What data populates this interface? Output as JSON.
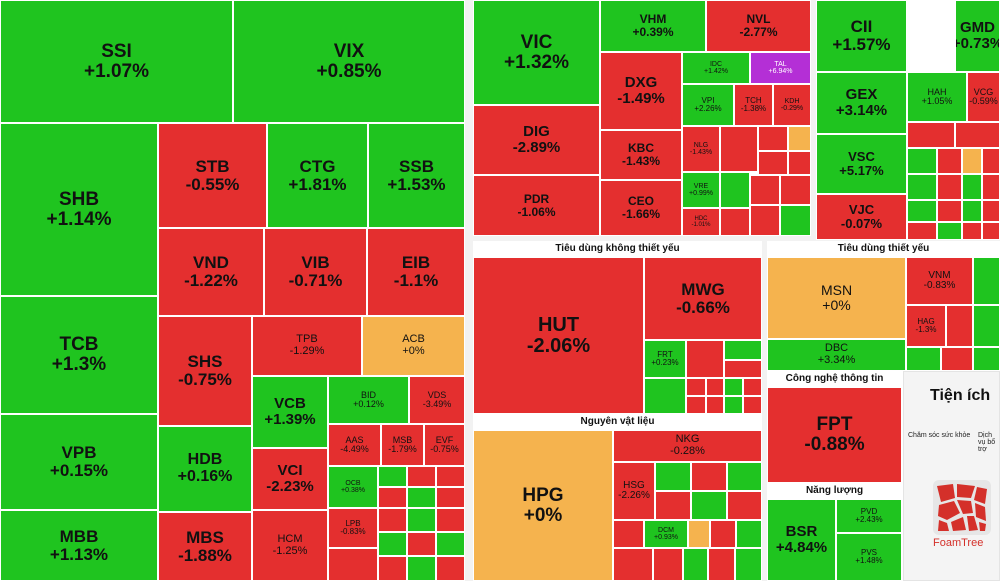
{
  "colors": {
    "up": "#1fc41f",
    "down": "#e42f2f",
    "flat": "#f5b34e",
    "ceiling": "#b42fd6",
    "separator": "#f2f2f2"
  },
  "sections": {
    "consumer_discretionary": "Tiêu dùng không thiết yếu",
    "consumer_staples": "Tiêu dùng thiết yếu",
    "materials": "Nguyên vật liệu",
    "technology": "Công nghệ thông tin",
    "energy": "Năng lượng"
  },
  "utilities": {
    "title": "Tiện ích",
    "items": [
      "Chăm sóc sức khỏe",
      "Dịch vụ bổ trợ"
    ]
  },
  "logo": {
    "text": "FoamTree"
  },
  "chart_data": {
    "type": "heatmap",
    "unit": "% price change",
    "tiles": [
      {
        "ticker": "SSI",
        "change": "+1.07%",
        "value": 1.07
      },
      {
        "ticker": "VIX",
        "change": "+0.85%",
        "value": 0.85
      },
      {
        "ticker": "SHB",
        "change": "+1.14%",
        "value": 1.14
      },
      {
        "ticker": "STB",
        "change": "-0.55%",
        "value": -0.55
      },
      {
        "ticker": "CTG",
        "change": "+1.81%",
        "value": 1.81
      },
      {
        "ticker": "SSB",
        "change": "+1.53%",
        "value": 1.53
      },
      {
        "ticker": "VND",
        "change": "-1.22%",
        "value": -1.22
      },
      {
        "ticker": "VIB",
        "change": "-0.71%",
        "value": -0.71
      },
      {
        "ticker": "EIB",
        "change": "-1.1%",
        "value": -1.1
      },
      {
        "ticker": "TCB",
        "change": "+1.3%",
        "value": 1.3
      },
      {
        "ticker": "SHS",
        "change": "-0.75%",
        "value": -0.75
      },
      {
        "ticker": "TPB",
        "change": "-1.29%",
        "value": -1.29
      },
      {
        "ticker": "ACB",
        "change": "+0%",
        "value": 0
      },
      {
        "ticker": "VPB",
        "change": "+0.15%",
        "value": 0.15
      },
      {
        "ticker": "HDB",
        "change": "+0.16%",
        "value": 0.16
      },
      {
        "ticker": "VCB",
        "change": "+1.39%",
        "value": 1.39
      },
      {
        "ticker": "BID",
        "change": "+0.12%",
        "value": 0.12
      },
      {
        "ticker": "VDS",
        "change": "-3.49%",
        "value": -3.49
      },
      {
        "ticker": "AAS",
        "change": "-4.49%",
        "value": -4.49
      },
      {
        "ticker": "MSB",
        "change": "-1.79%",
        "value": -1.79
      },
      {
        "ticker": "EVF",
        "change": "-0.75%",
        "value": -0.75
      },
      {
        "ticker": "VCI",
        "change": "-2.23%",
        "value": -2.23
      },
      {
        "ticker": "OCB",
        "change": "+0.38%",
        "value": 0.38
      },
      {
        "ticker": "MBB",
        "change": "+1.13%",
        "value": 1.13
      },
      {
        "ticker": "MBS",
        "change": "-1.88%",
        "value": -1.88
      },
      {
        "ticker": "HCM",
        "change": "-1.25%",
        "value": -1.25
      },
      {
        "ticker": "LPB",
        "change": "-0.83%",
        "value": -0.83
      },
      {
        "ticker": "VIC",
        "change": "+1.32%",
        "value": 1.32
      },
      {
        "ticker": "VHM",
        "change": "+0.39%",
        "value": 0.39
      },
      {
        "ticker": "NVL",
        "change": "-2.77%",
        "value": -2.77
      },
      {
        "ticker": "TAL",
        "change": "+6.94%",
        "value": 6.94
      },
      {
        "ticker": "DXG",
        "change": "-1.49%",
        "value": -1.49
      },
      {
        "ticker": "IDC",
        "change": "+1.42%",
        "value": 1.42
      },
      {
        "ticker": "DIG",
        "change": "-2.89%",
        "value": -2.89
      },
      {
        "ticker": "KBC",
        "change": "-1.43%",
        "value": -1.43
      },
      {
        "ticker": "VPI",
        "change": "+2.26%",
        "value": 2.26
      },
      {
        "ticker": "TCH",
        "change": "-1.38%",
        "value": -1.38
      },
      {
        "ticker": "KDH",
        "change": "-0.29%",
        "value": -0.29
      },
      {
        "ticker": "NLG",
        "change": "-1.43%",
        "value": -1.43
      },
      {
        "ticker": "PDR",
        "change": "-1.06%",
        "value": -1.06
      },
      {
        "ticker": "CEO",
        "change": "-1.66%",
        "value": -1.66
      },
      {
        "ticker": "VRE",
        "change": "+0.99%",
        "value": 0.99
      },
      {
        "ticker": "HDC",
        "change": "-1.01%",
        "value": -1.01
      },
      {
        "ticker": "CII",
        "change": "+1.57%",
        "value": 1.57
      },
      {
        "ticker": "GMD",
        "change": "+0.73%",
        "value": 0.73
      },
      {
        "ticker": "GEX",
        "change": "+3.14%",
        "value": 3.14
      },
      {
        "ticker": "HAH",
        "change": "+1.05%",
        "value": 1.05
      },
      {
        "ticker": "VCG",
        "change": "-0.59%",
        "value": -0.59
      },
      {
        "ticker": "VSC",
        "change": "+5.17%",
        "value": 5.17
      },
      {
        "ticker": "VJC",
        "change": "-0.07%",
        "value": -0.07
      },
      {
        "ticker": "HUT",
        "change": "-2.06%",
        "value": -2.06
      },
      {
        "ticker": "MWG",
        "change": "-0.66%",
        "value": -0.66
      },
      {
        "ticker": "FRT",
        "change": "+0.23%",
        "value": 0.23
      },
      {
        "ticker": "MSN",
        "change": "+0%",
        "value": 0
      },
      {
        "ticker": "VNM",
        "change": "-0.83%",
        "value": -0.83
      },
      {
        "ticker": "HAG",
        "change": "-1.3%",
        "value": -1.3
      },
      {
        "ticker": "DBC",
        "change": "+3.34%",
        "value": 3.34
      },
      {
        "ticker": "FPT",
        "change": "-0.88%",
        "value": -0.88
      },
      {
        "ticker": "HPG",
        "change": "+0%",
        "value": 0
      },
      {
        "ticker": "NKG",
        "change": "-0.28%",
        "value": -0.28
      },
      {
        "ticker": "HSG",
        "change": "-2.26%",
        "value": -2.26
      },
      {
        "ticker": "DCM",
        "change": "+0.93%",
        "value": 0.93
      },
      {
        "ticker": "BSR",
        "change": "+4.84%",
        "value": 4.84
      },
      {
        "ticker": "PVD",
        "change": "+2.43%",
        "value": 2.43
      },
      {
        "ticker": "PVS",
        "change": "+1.48%",
        "value": 1.48
      }
    ]
  }
}
